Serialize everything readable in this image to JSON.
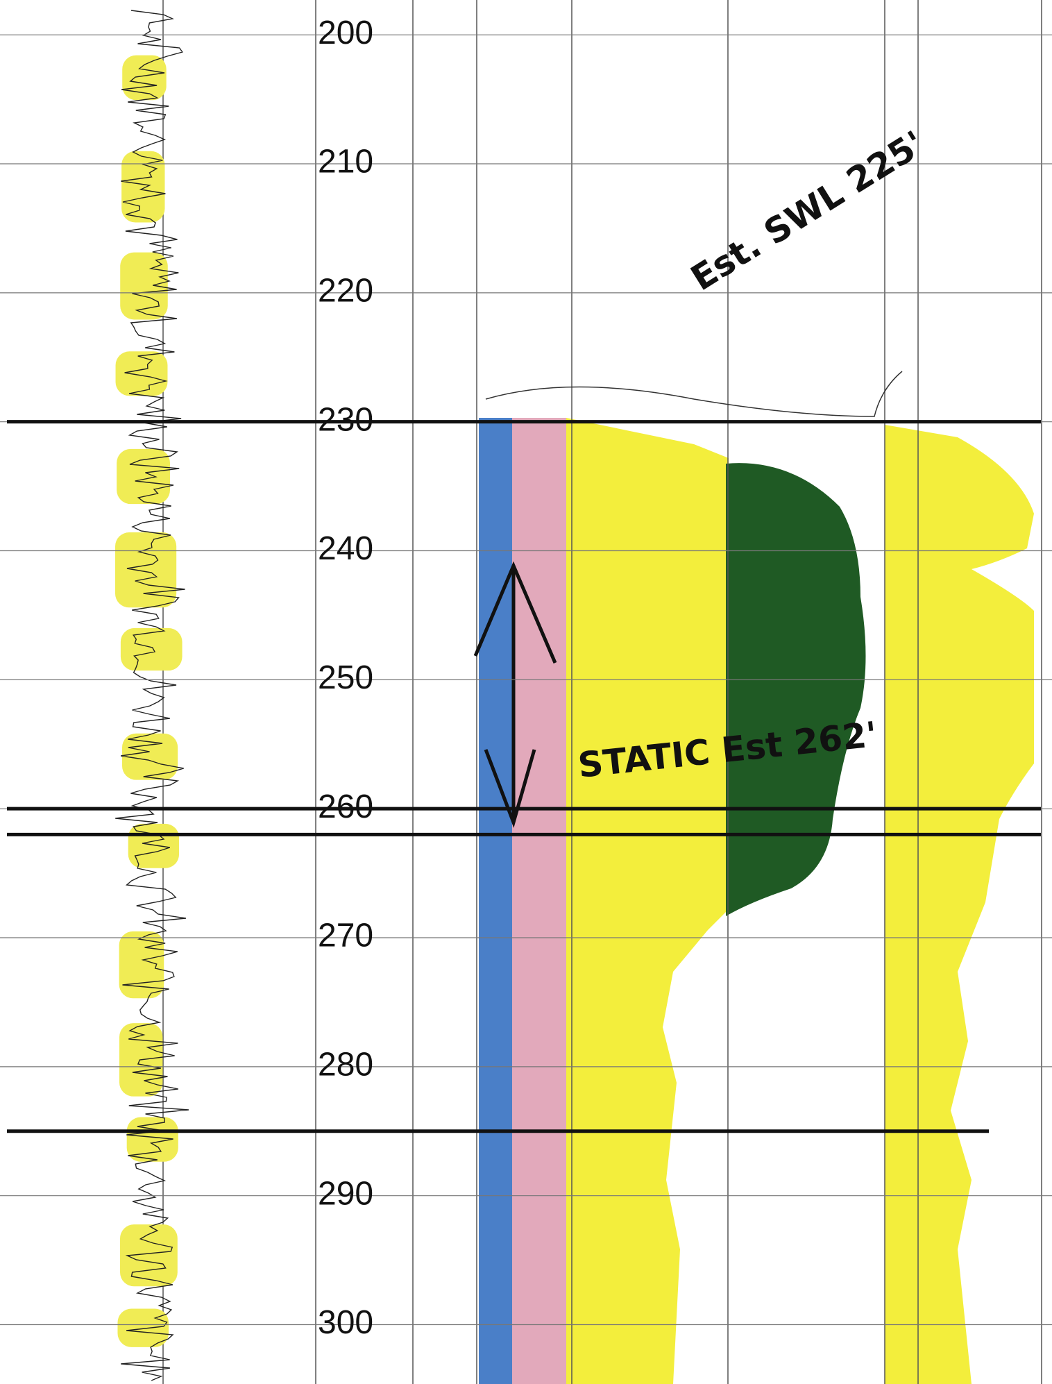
{
  "depth_track": {
    "ticks": [
      200,
      210,
      220,
      230,
      240,
      250,
      260,
      270,
      280,
      290,
      300
    ],
    "range": [
      197.3,
      304.6
    ]
  },
  "horizon_lines": [
    230,
    260,
    262,
    285
  ],
  "annotations": {
    "water_level": "Est. SWL 225'",
    "static": "STATIC Est 262'"
  }
}
